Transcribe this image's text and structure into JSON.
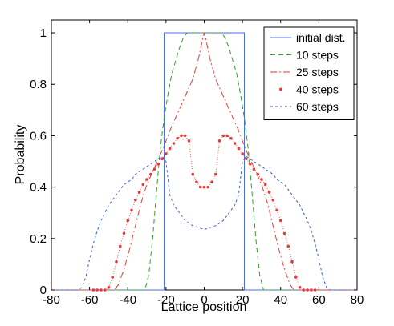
{
  "chart_data": {
    "type": "line",
    "xlabel": "Lattice position",
    "ylabel": "Probability",
    "xlim": [
      -80,
      80
    ],
    "ylim": [
      0,
      1.05
    ],
    "xticks": [
      "-80",
      "-60",
      "-40",
      "-20",
      "0",
      "20",
      "40",
      "60",
      "80"
    ],
    "yticks": [
      "0",
      "0.2",
      "0.4",
      "0.6",
      "0.8",
      "1"
    ],
    "grid": false,
    "legend_position": "top-right",
    "series": [
      {
        "name": "initial dist.",
        "color": "#4a6cf0",
        "style": "solid",
        "x": [
          -80,
          -21,
          -21,
          21,
          21,
          80
        ],
        "y": [
          0,
          0,
          1,
          1,
          0,
          0
        ]
      },
      {
        "name": "10 steps",
        "color": "#2aa02a",
        "style": "dashed",
        "x": [
          -80,
          -31,
          -29,
          -27,
          -25,
          -23,
          -21,
          -19,
          -17,
          -15,
          -13,
          -11,
          -9,
          9,
          11,
          13,
          15,
          17,
          19,
          21,
          23,
          25,
          27,
          29,
          31,
          80
        ],
        "y": [
          0,
          0,
          0.06,
          0.2,
          0.38,
          0.55,
          0.67,
          0.76,
          0.84,
          0.89,
          0.94,
          0.98,
          1.0,
          1.0,
          0.98,
          0.94,
          0.89,
          0.84,
          0.76,
          0.67,
          0.55,
          0.38,
          0.2,
          0.06,
          0,
          0
        ]
      },
      {
        "name": "25 steps",
        "color": "#e83a3a",
        "style": "dashdot",
        "x": [
          -80,
          -47,
          -45,
          -42,
          -39,
          -36,
          -33,
          -30,
          -27,
          -24,
          -21,
          -18,
          -15,
          -12,
          -9,
          -6,
          -3,
          -1,
          0,
          1,
          3,
          6,
          9,
          12,
          15,
          18,
          21,
          24,
          27,
          30,
          33,
          36,
          39,
          42,
          45,
          47,
          80
        ],
        "y": [
          0,
          0,
          0.02,
          0.08,
          0.16,
          0.25,
          0.34,
          0.41,
          0.46,
          0.51,
          0.56,
          0.62,
          0.67,
          0.72,
          0.77,
          0.82,
          0.9,
          0.97,
          1.0,
          0.97,
          0.9,
          0.82,
          0.77,
          0.72,
          0.67,
          0.62,
          0.56,
          0.51,
          0.46,
          0.41,
          0.34,
          0.25,
          0.16,
          0.08,
          0.02,
          0,
          0
        ]
      },
      {
        "name": "40 steps",
        "color": "#e83a3a",
        "style": "dots",
        "x": [
          -80,
          -58,
          -56,
          -54,
          -52,
          -50,
          -48,
          -46,
          -44,
          -42,
          -40,
          -38,
          -36,
          -34,
          -32,
          -30,
          -28,
          -26,
          -24,
          -22,
          -20,
          -18,
          -16,
          -14,
          -12,
          -10,
          -8,
          -6,
          -4,
          -2,
          0,
          2,
          4,
          6,
          8,
          10,
          12,
          14,
          16,
          18,
          20,
          22,
          24,
          26,
          28,
          30,
          32,
          34,
          36,
          38,
          40,
          42,
          44,
          46,
          48,
          50,
          52,
          54,
          56,
          58,
          80
        ],
        "y": [
          0,
          0,
          0,
          0,
          0,
          0.01,
          0.05,
          0.11,
          0.17,
          0.22,
          0.27,
          0.31,
          0.35,
          0.38,
          0.41,
          0.43,
          0.45,
          0.47,
          0.49,
          0.51,
          0.53,
          0.55,
          0.57,
          0.59,
          0.6,
          0.6,
          0.58,
          0.45,
          0.42,
          0.4,
          0.4,
          0.4,
          0.42,
          0.45,
          0.58,
          0.6,
          0.6,
          0.59,
          0.57,
          0.55,
          0.53,
          0.51,
          0.49,
          0.47,
          0.45,
          0.43,
          0.41,
          0.38,
          0.35,
          0.31,
          0.27,
          0.22,
          0.17,
          0.11,
          0.05,
          0.01,
          0,
          0,
          0,
          0,
          0
        ]
      },
      {
        "name": "60 steps",
        "color": "#3b5bd6",
        "style": "dashed-fine",
        "x": [
          -80,
          -66,
          -64,
          -62,
          -60,
          -58,
          -56,
          -54,
          -52,
          -50,
          -48,
          -46,
          -44,
          -42,
          -40,
          -38,
          -36,
          -34,
          -32,
          -30,
          -28,
          -26,
          -24,
          -22,
          -20,
          -18,
          -16,
          -14,
          -12,
          -10,
          -8,
          -6,
          -4,
          -2,
          0,
          2,
          4,
          6,
          8,
          10,
          12,
          14,
          16,
          18,
          20,
          22,
          24,
          26,
          28,
          30,
          32,
          34,
          36,
          38,
          40,
          42,
          44,
          46,
          48,
          50,
          52,
          54,
          56,
          58,
          60,
          62,
          64,
          66,
          80
        ],
        "y": [
          0,
          0,
          0.01,
          0.05,
          0.12,
          0.18,
          0.23,
          0.27,
          0.3,
          0.33,
          0.35,
          0.37,
          0.39,
          0.41,
          0.42,
          0.43,
          0.45,
          0.46,
          0.47,
          0.48,
          0.49,
          0.5,
          0.51,
          0.52,
          0.5,
          0.37,
          0.33,
          0.31,
          0.29,
          0.27,
          0.26,
          0.25,
          0.245,
          0.24,
          0.235,
          0.24,
          0.245,
          0.25,
          0.26,
          0.27,
          0.29,
          0.31,
          0.33,
          0.37,
          0.5,
          0.52,
          0.51,
          0.5,
          0.49,
          0.48,
          0.47,
          0.46,
          0.45,
          0.43,
          0.42,
          0.41,
          0.39,
          0.37,
          0.35,
          0.33,
          0.3,
          0.27,
          0.23,
          0.18,
          0.12,
          0.05,
          0.01,
          0,
          0
        ]
      }
    ]
  }
}
